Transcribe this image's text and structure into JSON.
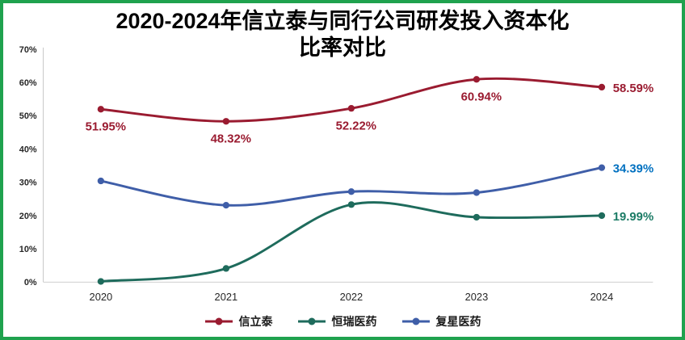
{
  "title": {
    "line1": "2020-2024年信立泰与同行公司研发投入资本化",
    "line2": "比率对比"
  },
  "chart_data": {
    "type": "line",
    "title": "2020-2024年信立泰与同行公司研发投入资本化比率对比",
    "categories": [
      "2020",
      "2021",
      "2022",
      "2023",
      "2024"
    ],
    "series": [
      {
        "name": "信立泰",
        "color": "#9A1B30",
        "label_color": "#9A1B30",
        "values": [
          51.95,
          48.32,
          52.22,
          60.94,
          58.59
        ],
        "data_labels": [
          "51.95%",
          "48.32%",
          "52.22%",
          "60.94%",
          "58.59%"
        ]
      },
      {
        "name": "恒瑞医药",
        "color": "#1E6B5C",
        "label_color": "#1B7B65",
        "values": [
          0.2,
          4.1,
          23.3,
          19.5,
          19.99
        ],
        "data_labels": [
          null,
          null,
          null,
          null,
          "19.99%"
        ]
      },
      {
        "name": "复星医药",
        "color": "#3F5EA8",
        "label_color": "#0070C0",
        "values": [
          30.4,
          23.1,
          27.2,
          26.9,
          34.39
        ],
        "data_labels": [
          null,
          null,
          null,
          null,
          "34.39%"
        ]
      }
    ],
    "ylim": [
      0,
      70
    ],
    "ytick_step": 10,
    "ytick_suffix": "%",
    "grid": false,
    "legend_position": "bottom"
  },
  "colors": {
    "frame_border": "#1FA24E",
    "axis_line": "#C9C9C9",
    "tick_text": "#262626",
    "title_text": "#000000"
  }
}
